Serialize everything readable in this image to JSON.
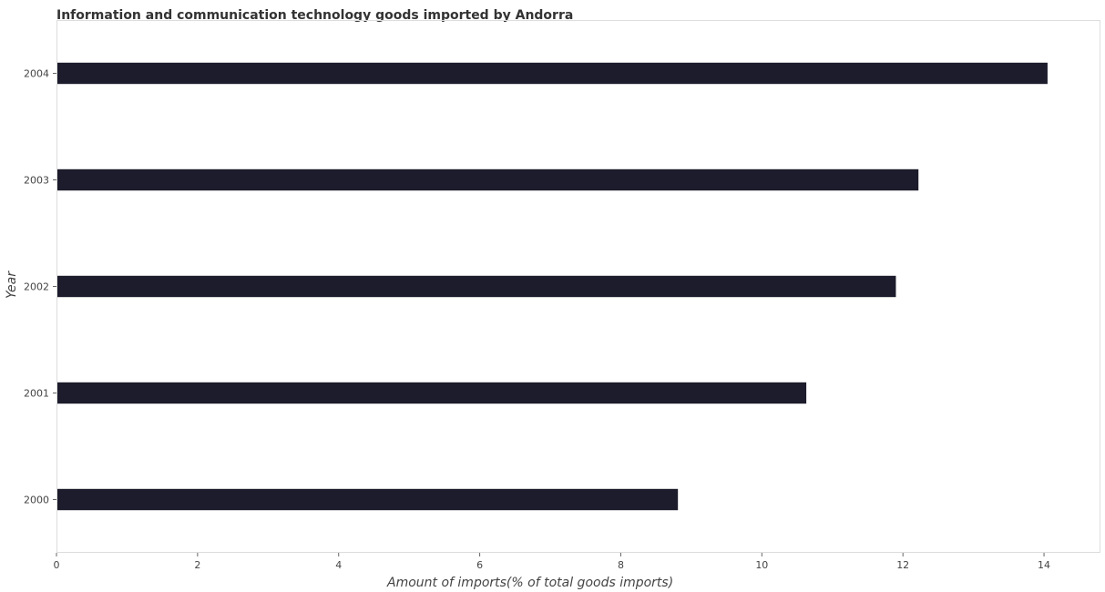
{
  "chart_data": {
    "type": "bar",
    "orientation": "horizontal",
    "title": "Information and communication technology goods imported by Andorra",
    "xlabel": "Amount of imports(% of total goods imports)",
    "ylabel": "Year",
    "categories": [
      "2000",
      "2001",
      "2002",
      "2003",
      "2004"
    ],
    "values": [
      8.81,
      10.63,
      11.9,
      12.22,
      14.05
    ],
    "xlim": [
      0,
      14.8
    ],
    "xticks": [
      0,
      2,
      4,
      6,
      8,
      10,
      12,
      14
    ],
    "xtick_labels": [
      "0",
      "2",
      "4",
      "6",
      "8",
      "10",
      "12",
      "14"
    ],
    "grid": false,
    "bar_color": "#1c1c2c"
  }
}
